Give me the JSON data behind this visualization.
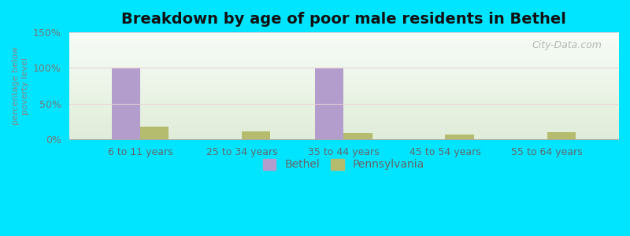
{
  "title": "Breakdown by age of poor male residents in Bethel",
  "ylabel": "percentage below\npoverty level",
  "categories": [
    "6 to 11 years",
    "25 to 34 years",
    "35 to 44 years",
    "45 to 54 years",
    "55 to 64 years"
  ],
  "bethel_values": [
    100,
    0,
    100,
    0,
    0
  ],
  "pennsylvania_values": [
    18,
    11,
    9,
    7,
    10
  ],
  "bethel_color": "#b39dcc",
  "pennsylvania_color": "#b5bc6e",
  "background_outer": "#00e5ff",
  "ylim": [
    0,
    150
  ],
  "yticks": [
    0,
    50,
    100,
    150
  ],
  "ytick_labels": [
    "0%",
    "50%",
    "100%",
    "150%"
  ],
  "bar_width": 0.28,
  "title_fontsize": 14,
  "legend_labels": [
    "Bethel",
    "Pennsylvania"
  ],
  "watermark": "City-Data.com"
}
